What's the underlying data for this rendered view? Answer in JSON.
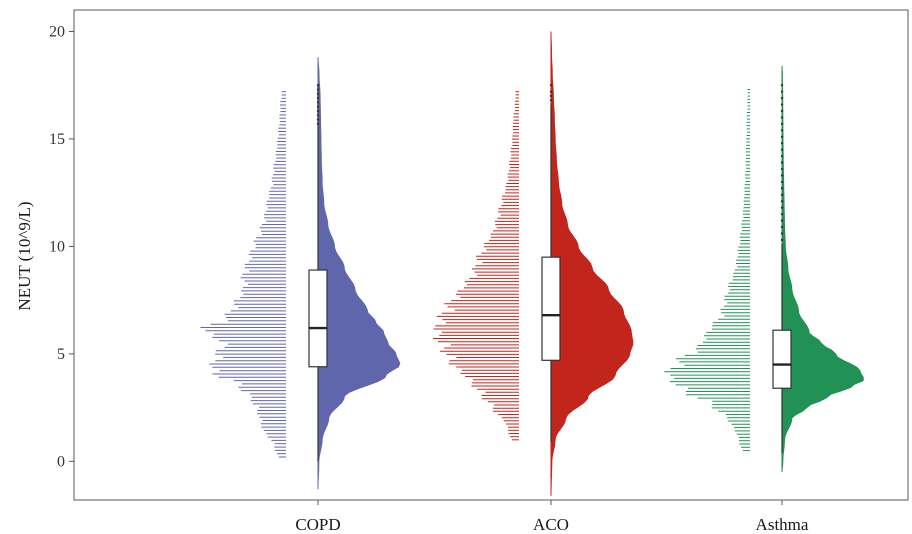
{
  "chart_data": {
    "type": "violin",
    "title": "",
    "xlabel": "",
    "ylabel": "NEUT (10^9/L)",
    "ylim": [
      -1.8,
      21
    ],
    "yticks": [
      0,
      5,
      10,
      15,
      20
    ],
    "grid": false,
    "legend": "none",
    "categories": [
      "COPD",
      "ACO",
      "Asthma"
    ],
    "series": [
      {
        "category": "COPD",
        "color": "#6066AB",
        "box": {
          "q1": 4.4,
          "median": 6.2,
          "q3": 8.9,
          "whisker_low": 0.0,
          "whisker_high": 17.5
        },
        "outliers_top": [
          15.7,
          15.9,
          16.1,
          16.3,
          16.5,
          16.7,
          16.9,
          17.1,
          17.3,
          17.5
        ],
        "density_range": [
          -1.3,
          18.8
        ],
        "density": [
          [
            -1.3,
            0.0
          ],
          [
            0,
            0.01
          ],
          [
            1,
            0.05
          ],
          [
            2,
            0.13
          ],
          [
            3,
            0.32
          ],
          [
            4,
            0.83
          ],
          [
            4.5,
            1.0
          ],
          [
            5,
            0.95
          ],
          [
            5.5,
            0.85
          ],
          [
            6,
            0.8
          ],
          [
            6.5,
            0.7
          ],
          [
            7,
            0.6
          ],
          [
            8,
            0.45
          ],
          [
            9,
            0.32
          ],
          [
            10,
            0.2
          ],
          [
            11,
            0.12
          ],
          [
            12,
            0.07
          ],
          [
            13,
            0.05
          ],
          [
            14,
            0.04
          ],
          [
            15,
            0.035
          ],
          [
            16,
            0.03
          ],
          [
            17,
            0.025
          ],
          [
            18,
            0.012
          ],
          [
            18.8,
            0.0
          ]
        ],
        "strip": [
          [
            0.2,
            0.1
          ],
          [
            0.8,
            0.15
          ],
          [
            1.5,
            0.28
          ],
          [
            2.2,
            0.33
          ],
          [
            2.8,
            0.4
          ],
          [
            3.5,
            0.55
          ],
          [
            4.2,
            0.9
          ],
          [
            4.8,
            0.85
          ],
          [
            5.5,
            0.75
          ],
          [
            6.1,
            1.0
          ],
          [
            6.8,
            0.7
          ],
          [
            7.4,
            0.6
          ],
          [
            8.1,
            0.5
          ],
          [
            8.7,
            0.52
          ],
          [
            9.4,
            0.45
          ],
          [
            10.1,
            0.38
          ],
          [
            10.8,
            0.3
          ],
          [
            11.5,
            0.25
          ],
          [
            12.2,
            0.22
          ],
          [
            12.9,
            0.17
          ],
          [
            13.6,
            0.15
          ],
          [
            14.3,
            0.12
          ],
          [
            15.0,
            0.1
          ],
          [
            15.8,
            0.08
          ],
          [
            16.5,
            0.07
          ],
          [
            17.2,
            0.05
          ]
        ]
      },
      {
        "category": "ACO",
        "color": "#C1251C",
        "box": {
          "q1": 4.7,
          "median": 6.8,
          "q3": 9.5,
          "whisker_low": 0.9,
          "whisker_high": 16.6
        },
        "outliers_top": [
          16.8,
          17.0,
          17.2,
          17.5
        ],
        "density_range": [
          -1.6,
          20.0
        ],
        "density": [
          [
            -1.6,
            0.0
          ],
          [
            0,
            0.01
          ],
          [
            1,
            0.05
          ],
          [
            2,
            0.18
          ],
          [
            3,
            0.45
          ],
          [
            4,
            0.78
          ],
          [
            5,
            0.96
          ],
          [
            5.5,
            1.0
          ],
          [
            6,
            0.98
          ],
          [
            7,
            0.88
          ],
          [
            8,
            0.7
          ],
          [
            9,
            0.5
          ],
          [
            10,
            0.33
          ],
          [
            11,
            0.2
          ],
          [
            12,
            0.13
          ],
          [
            13,
            0.09
          ],
          [
            14,
            0.065
          ],
          [
            15,
            0.05
          ],
          [
            16,
            0.04
          ],
          [
            17,
            0.028
          ],
          [
            18,
            0.015
          ],
          [
            19,
            0.006
          ],
          [
            20,
            0.0
          ]
        ],
        "strip": [
          [
            1.0,
            0.1
          ],
          [
            1.7,
            0.15
          ],
          [
            2.4,
            0.3
          ],
          [
            3.1,
            0.45
          ],
          [
            3.8,
            0.6
          ],
          [
            4.5,
            0.8
          ],
          [
            5.2,
            0.9
          ],
          [
            5.9,
            1.0
          ],
          [
            6.6,
            0.95
          ],
          [
            7.3,
            0.85
          ],
          [
            8.0,
            0.7
          ],
          [
            8.7,
            0.55
          ],
          [
            9.4,
            0.5
          ],
          [
            10.1,
            0.4
          ],
          [
            10.8,
            0.3
          ],
          [
            11.5,
            0.25
          ],
          [
            12.2,
            0.2
          ],
          [
            12.9,
            0.15
          ],
          [
            13.6,
            0.12
          ],
          [
            14.3,
            0.1
          ],
          [
            15.0,
            0.08
          ],
          [
            15.8,
            0.07
          ],
          [
            16.5,
            0.05
          ],
          [
            17.2,
            0.04
          ]
        ]
      },
      {
        "category": "Asthma",
        "color": "#219155",
        "box": {
          "q1": 3.4,
          "median": 4.5,
          "q3": 6.1,
          "whisker_low": 0.4,
          "whisker_high": 10.1
        },
        "outliers_top": [
          10.3,
          10.6,
          10.9,
          11.2,
          11.5,
          11.8,
          12.1,
          12.4,
          12.7,
          13.0,
          13.3,
          13.6,
          13.9,
          14.2,
          14.5,
          14.8,
          15.1,
          15.4,
          15.7,
          16.0,
          16.3,
          16.6,
          16.9,
          17.2,
          17.5
        ],
        "density_range": [
          -0.5,
          18.4
        ],
        "density": [
          [
            -0.5,
            0.0
          ],
          [
            0,
            0.01
          ],
          [
            1,
            0.03
          ],
          [
            2,
            0.12
          ],
          [
            2.5,
            0.3
          ],
          [
            3,
            0.55
          ],
          [
            3.5,
            0.85
          ],
          [
            3.8,
            1.0
          ],
          [
            4.2,
            0.95
          ],
          [
            5,
            0.65
          ],
          [
            5.5,
            0.48
          ],
          [
            6,
            0.33
          ],
          [
            7,
            0.2
          ],
          [
            8,
            0.12
          ],
          [
            9,
            0.07
          ],
          [
            10,
            0.04
          ],
          [
            11,
            0.03
          ],
          [
            12,
            0.025
          ],
          [
            13,
            0.02
          ],
          [
            14,
            0.015
          ],
          [
            15,
            0.012
          ],
          [
            16,
            0.01
          ],
          [
            17,
            0.008
          ],
          [
            18,
            0.005
          ],
          [
            18.4,
            0.0
          ]
        ],
        "strip": [
          [
            0.5,
            0.1
          ],
          [
            1.2,
            0.15
          ],
          [
            1.9,
            0.25
          ],
          [
            2.6,
            0.45
          ],
          [
            3.3,
            0.8
          ],
          [
            4.0,
            1.0
          ],
          [
            4.7,
            0.85
          ],
          [
            5.4,
            0.6
          ],
          [
            6.1,
            0.5
          ],
          [
            6.8,
            0.35
          ],
          [
            7.5,
            0.3
          ],
          [
            8.2,
            0.25
          ],
          [
            8.9,
            0.18
          ],
          [
            9.6,
            0.15
          ],
          [
            10.3,
            0.12
          ],
          [
            11.0,
            0.1
          ],
          [
            11.7,
            0.08
          ],
          [
            12.4,
            0.07
          ],
          [
            13.1,
            0.06
          ],
          [
            13.8,
            0.05
          ],
          [
            14.5,
            0.05
          ],
          [
            15.2,
            0.04
          ],
          [
            15.9,
            0.04
          ],
          [
            16.6,
            0.03
          ],
          [
            17.3,
            0.03
          ]
        ]
      }
    ]
  }
}
